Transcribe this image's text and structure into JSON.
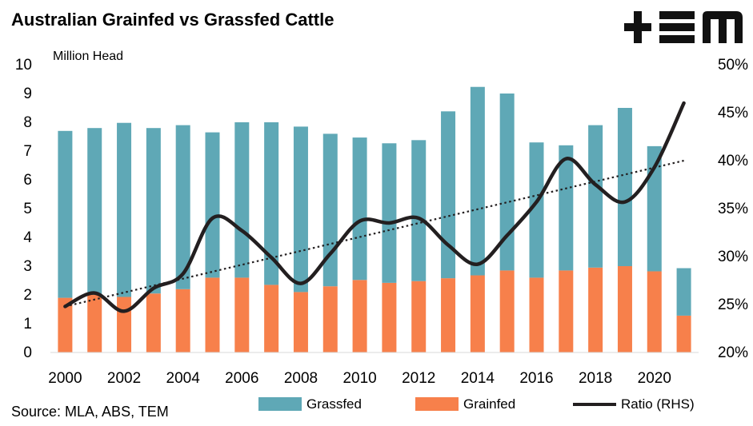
{
  "title": "Australian Grainfed vs Grassfed Cattle",
  "logo_text": "+TEM",
  "source": "Source: MLA, ABS, TEM",
  "colors": {
    "grassfed": "#5FA8B6",
    "grainfed": "#F7804B",
    "ratio": "#231F20",
    "trend": "#231F20"
  },
  "chart_data": {
    "type": "bar",
    "stacked": true,
    "x": [
      2000,
      2001,
      2002,
      2003,
      2004,
      2005,
      2006,
      2007,
      2008,
      2009,
      2010,
      2011,
      2012,
      2013,
      2014,
      2015,
      2016,
      2017,
      2018,
      2019,
      2020,
      2021
    ],
    "x_tick_labels": [
      "2000",
      "2002",
      "2004",
      "2006",
      "2008",
      "2010",
      "2012",
      "2014",
      "2016",
      "2018",
      "2020"
    ],
    "ylabel": "Million Head",
    "ylim": [
      0,
      10
    ],
    "y_ticks": [
      "0",
      "1",
      "2",
      "3",
      "4",
      "5",
      "6",
      "7",
      "8",
      "9",
      "10"
    ],
    "y2lim": [
      0.2,
      0.5
    ],
    "y2_ticks": [
      "20%",
      "25%",
      "30%",
      "35%",
      "40%",
      "45%",
      "50%"
    ],
    "series": [
      {
        "name": "Grassfed",
        "kind": "bar",
        "axis": "left",
        "values": [
          5.8,
          5.8,
          6.05,
          5.75,
          5.7,
          5.05,
          5.4,
          5.65,
          5.75,
          5.3,
          4.95,
          4.85,
          4.9,
          5.8,
          6.55,
          6.15,
          4.7,
          4.35,
          4.95,
          5.5,
          4.35,
          1.65
        ]
      },
      {
        "name": "Grainfed",
        "kind": "bar",
        "axis": "left",
        "values": [
          1.9,
          2.0,
          1.93,
          2.05,
          2.2,
          2.6,
          2.6,
          2.35,
          2.1,
          2.3,
          2.52,
          2.42,
          2.48,
          2.58,
          2.68,
          2.85,
          2.6,
          2.85,
          2.95,
          3.0,
          2.82,
          1.28
        ]
      },
      {
        "name": "Ratio (RHS)",
        "kind": "line",
        "axis": "right",
        "values": [
          0.248,
          0.262,
          0.243,
          0.267,
          0.282,
          0.34,
          0.327,
          0.299,
          0.272,
          0.303,
          0.337,
          0.335,
          0.34,
          0.312,
          0.292,
          0.322,
          0.357,
          0.402,
          0.375,
          0.357,
          0.393,
          0.46
        ]
      }
    ],
    "trendline": {
      "of": "Ratio (RHS)",
      "style": "dotted",
      "start": 0.248,
      "end": 0.4
    },
    "legend": [
      "Grassfed",
      "Grainfed",
      "Ratio (RHS)"
    ],
    "legend_position": "bottom",
    "grid": false
  }
}
